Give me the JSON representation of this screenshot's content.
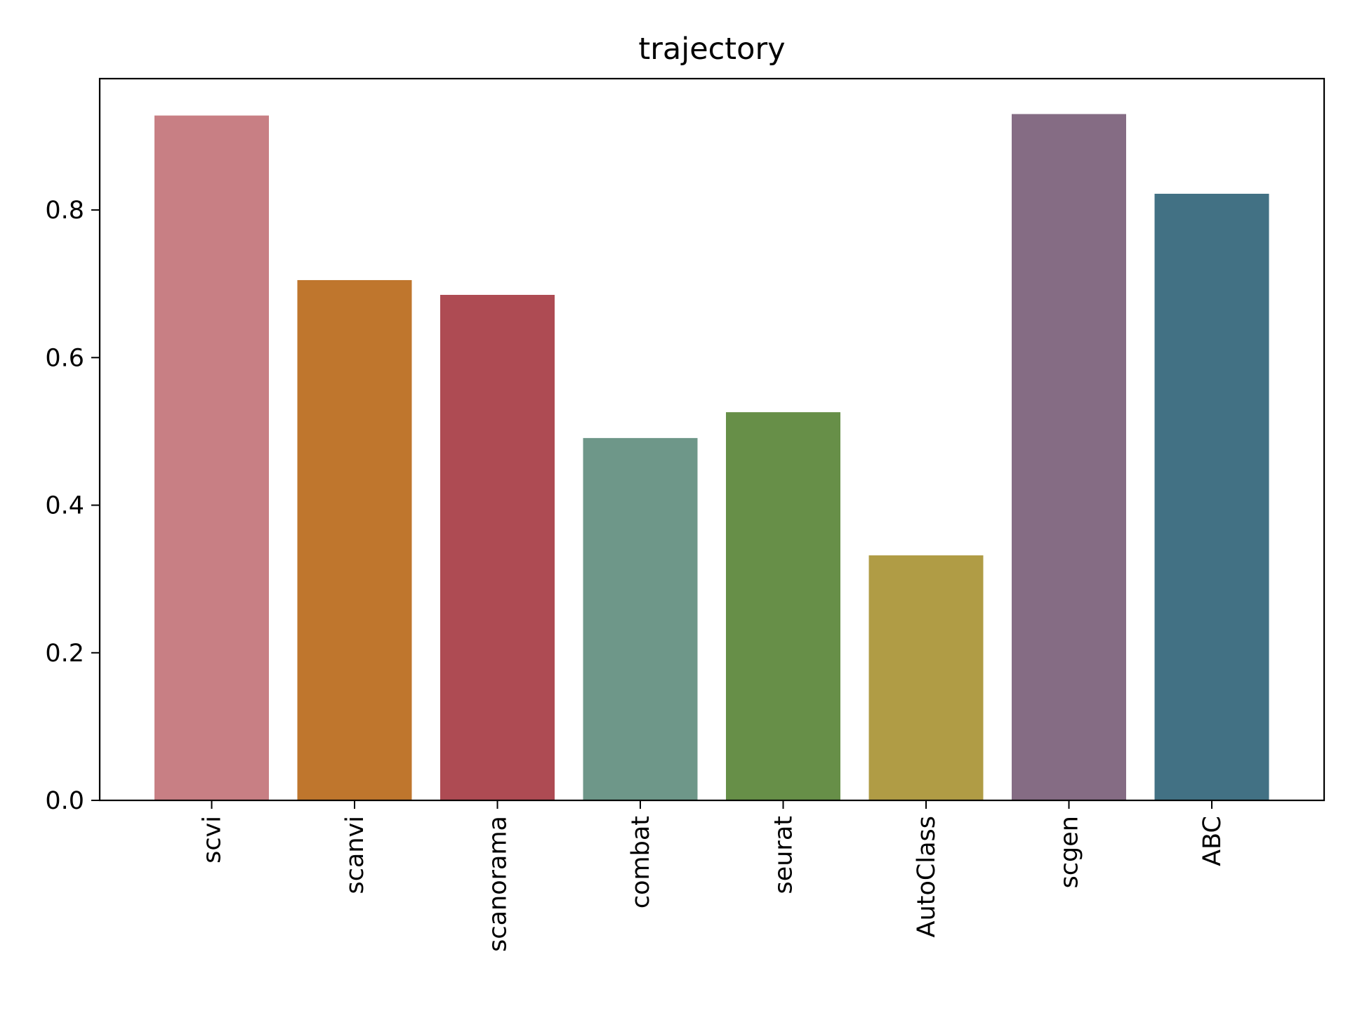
{
  "chart_data": {
    "type": "bar",
    "title": "trajectory",
    "xlabel": "",
    "ylabel": "",
    "categories": [
      "scvi",
      "scanvi",
      "scanorama",
      "combat",
      "seurat",
      "AutoClass",
      "scgen",
      "ABC"
    ],
    "values": [
      0.928,
      0.705,
      0.685,
      0.491,
      0.526,
      0.332,
      0.93,
      0.822
    ],
    "colors": [
      "#c87f84",
      "#bf762d",
      "#ae4b53",
      "#6e9789",
      "#678f48",
      "#b09c45",
      "#856c84",
      "#427184"
    ],
    "yticks": [
      0.0,
      0.2,
      0.4,
      0.6,
      0.8
    ],
    "ytick_labels": [
      "0.0",
      "0.2",
      "0.4",
      "0.6",
      "0.8"
    ],
    "ylim": [
      0,
      0.978
    ],
    "grid": false,
    "legend": "none"
  }
}
